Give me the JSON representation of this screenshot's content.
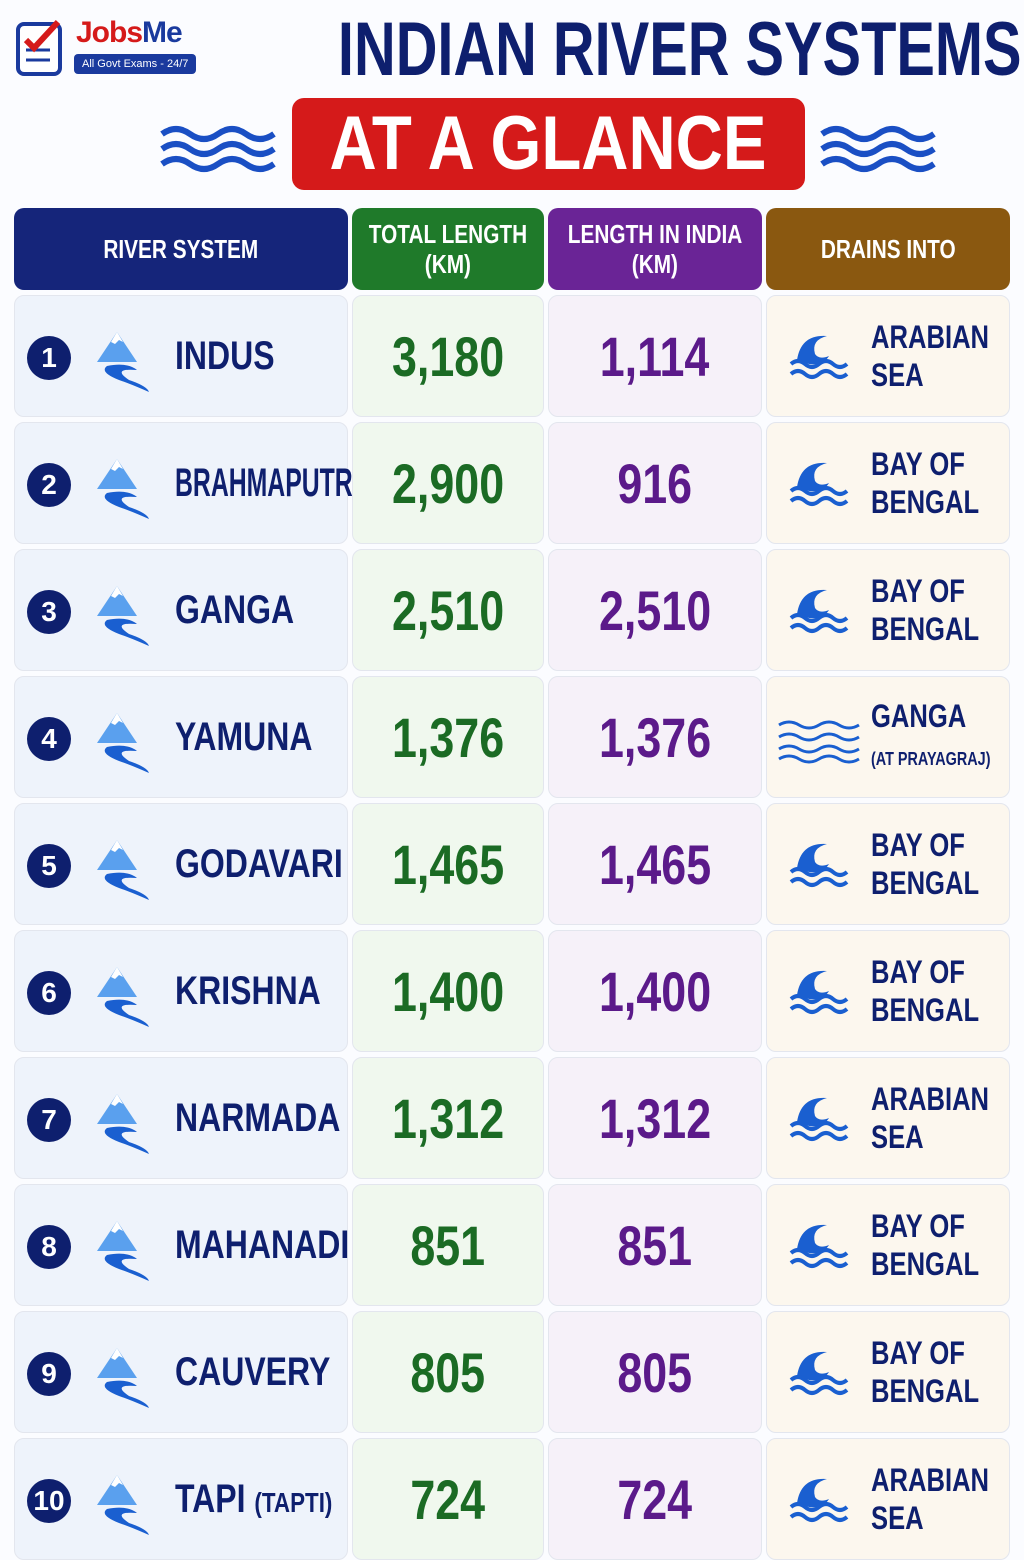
{
  "logo": {
    "brand_first": "Jobs",
    "brand_second": "Me",
    "tagline": "All Govt Exams - 24/7"
  },
  "title": {
    "line1": "INDIAN RIVER SYSTEMS",
    "line2": "AT A GLANCE"
  },
  "table": {
    "headers": [
      [
        "RIVER SYSTEM"
      ],
      [
        "TOTAL LENGTH",
        "(KM)"
      ],
      [
        "LENGTH IN INDIA",
        "(KM)"
      ],
      [
        "DRAINS INTO"
      ]
    ],
    "rows": [
      {
        "number": "1",
        "river": "INDUS",
        "total": "3,180",
        "india": "1,114",
        "drains": [
          "ARABIAN",
          "SEA"
        ]
      },
      {
        "number": "2",
        "river": "BRAHMAPUTRA",
        "total": "2,900",
        "india": "916",
        "drains": [
          "BAY OF",
          "BENGAL"
        ]
      },
      {
        "number": "3",
        "river": "GANGA",
        "total": "2,510",
        "india": "2,510",
        "drains": [
          "BAY OF",
          "BENGAL"
        ]
      },
      {
        "number": "4",
        "river": "YAMUNA",
        "total": "1,376",
        "india": "1,376",
        "drains": [
          "GANGA",
          "(AT PRAYAGRAJ)"
        ]
      },
      {
        "number": "5",
        "river": "GODAVARI",
        "total": "1,465",
        "india": "1,465",
        "drains": [
          "BAY OF",
          "BENGAL"
        ]
      },
      {
        "number": "6",
        "river": "KRISHNA",
        "total": "1,400",
        "india": "1,400",
        "drains": [
          "BAY OF",
          "BENGAL"
        ]
      },
      {
        "number": "7",
        "river": "NARMADA",
        "total": "1,312",
        "india": "1,312",
        "drains": [
          "ARABIAN",
          "SEA"
        ]
      },
      {
        "number": "8",
        "river": "MAHANADI",
        "total": "851",
        "india": "851",
        "drains": [
          "BAY OF",
          "BENGAL"
        ]
      },
      {
        "number": "9",
        "river": "CAUVERY",
        "total": "805",
        "india": "805",
        "drains": [
          "BAY OF",
          "BENGAL"
        ]
      },
      {
        "number": "10",
        "river": "TAPI",
        "river_note": "(TAPTI)",
        "total": "724",
        "india": "724",
        "drains": [
          "ARABIAN",
          "SEA"
        ]
      }
    ]
  }
}
